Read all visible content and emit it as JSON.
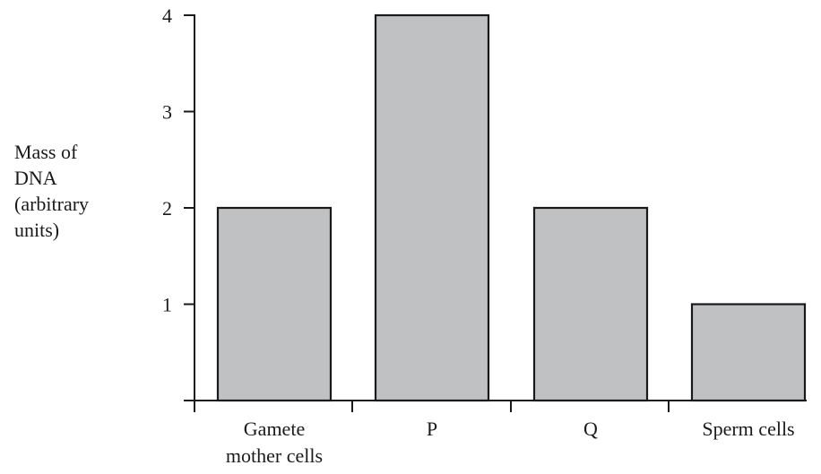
{
  "chart_data": {
    "type": "bar",
    "ylabel_lines": [
      "Mass of",
      "DNA",
      "(arbitrary",
      "units)"
    ],
    "categories": [
      [
        "Gamete",
        "mother cells"
      ],
      [
        "P"
      ],
      [
        "Q"
      ],
      [
        "Sperm cells"
      ]
    ],
    "values": [
      2,
      4,
      2,
      1
    ],
    "yticks": [
      1,
      2,
      3,
      4
    ],
    "ylim": [
      0,
      4
    ],
    "bar_color": "#c0c1c3",
    "bar_stroke": "#1a1a1a",
    "grid": false,
    "legend": "none"
  }
}
